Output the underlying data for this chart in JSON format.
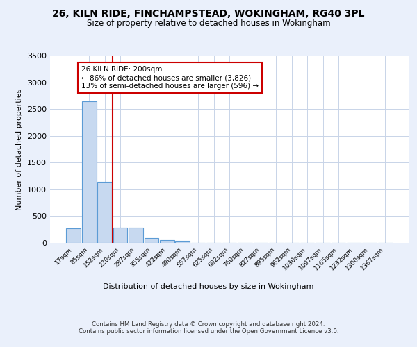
{
  "title": "26, KILN RIDE, FINCHAMPSTEAD, WOKINGHAM, RG40 3PL",
  "subtitle": "Size of property relative to detached houses in Wokingham",
  "xlabel": "Distribution of detached houses by size in Wokingham",
  "ylabel": "Number of detached properties",
  "bin_labels": [
    "17sqm",
    "85sqm",
    "152sqm",
    "220sqm",
    "287sqm",
    "355sqm",
    "422sqm",
    "490sqm",
    "557sqm",
    "625sqm",
    "692sqm",
    "760sqm",
    "827sqm",
    "895sqm",
    "962sqm",
    "1030sqm",
    "1097sqm",
    "1165sqm",
    "1232sqm",
    "1300sqm",
    "1367sqm"
  ],
  "bar_heights": [
    270,
    2650,
    1140,
    280,
    280,
    90,
    55,
    40,
    0,
    0,
    0,
    0,
    0,
    0,
    0,
    0,
    0,
    0,
    0,
    0,
    0
  ],
  "bar_color": "#c7d9f0",
  "bar_edge_color": "#5b9bd5",
  "vline_x": 2.5,
  "vline_color": "#cc0000",
  "annotation_line1": "26 KILN RIDE: 200sqm",
  "annotation_line2": "← 86% of detached houses are smaller (3,826)",
  "annotation_line3": "13% of semi-detached houses are larger (596) →",
  "annotation_box_color": "#ffffff",
  "annotation_box_edge": "#cc0000",
  "ylim": [
    0,
    3500
  ],
  "yticks": [
    0,
    500,
    1000,
    1500,
    2000,
    2500,
    3000,
    3500
  ],
  "footer": "Contains HM Land Registry data © Crown copyright and database right 2024.\nContains public sector information licensed under the Open Government Licence v3.0.",
  "bg_color": "#eaf0fb",
  "plot_bg_color": "#ffffff",
  "grid_color": "#c8d4e8"
}
